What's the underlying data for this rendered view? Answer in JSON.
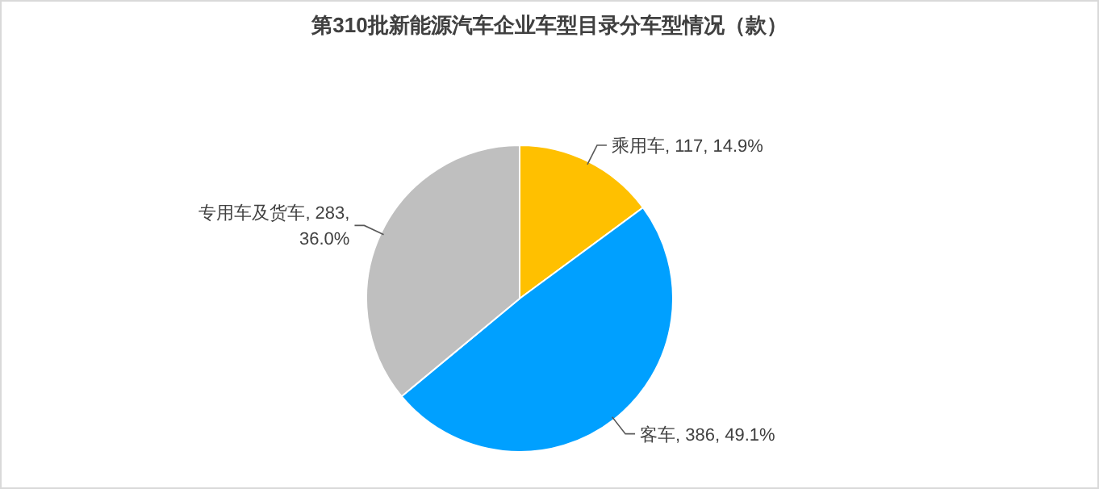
{
  "chart_data": {
    "type": "pie",
    "title": "第310批新能源汽车企业车型目录分车型情况（款）",
    "categories": [
      "乘用车",
      "客车",
      "专用车及货车"
    ],
    "values": [
      117,
      386,
      283
    ],
    "value_labels": [
      "117, 14.9%",
      "386, 49.1%",
      "283, 36.0%"
    ],
    "colors": [
      "#ffc000",
      "#00a0ff",
      "#bfbfbf"
    ]
  }
}
